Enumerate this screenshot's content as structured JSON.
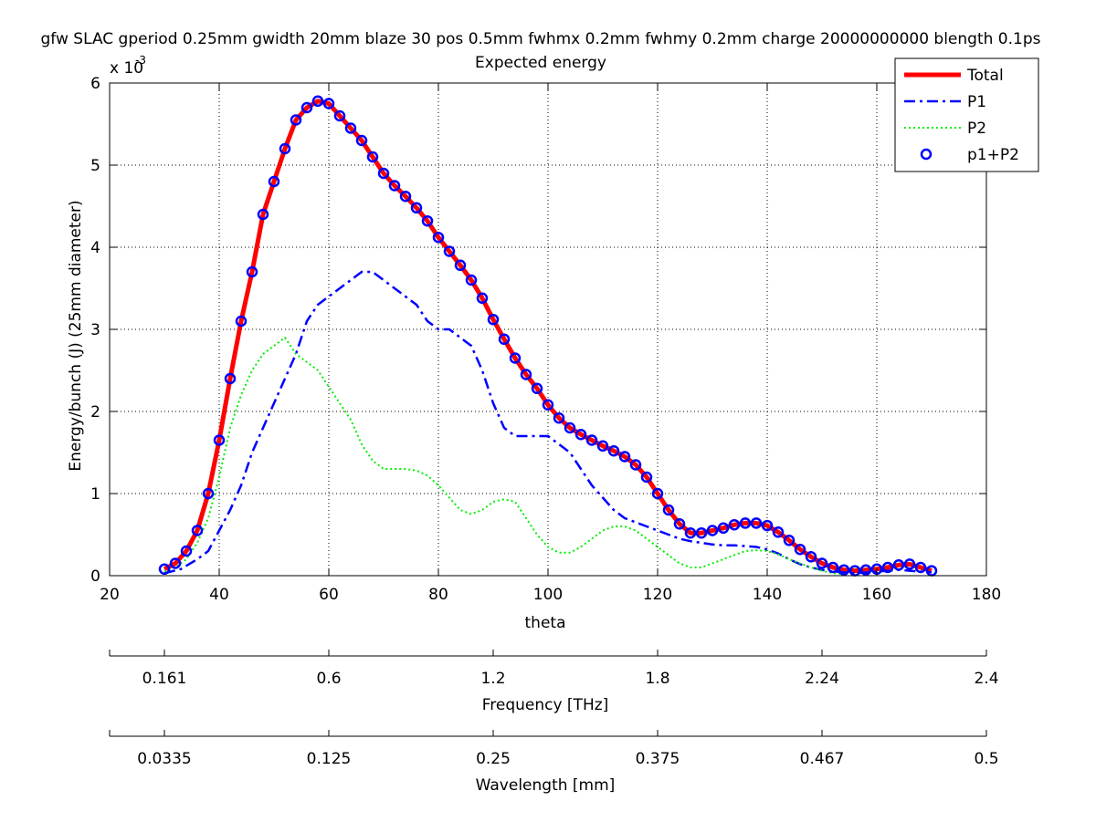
{
  "chart_data": {
    "type": "line",
    "title": "gfw SLAC gperiod 0.25mm gwidth 20mm blaze 30 pos 0.5mm fwhmx 0.2mm fwhmy 0.2mm charge 20000000000 blength 0.1ps",
    "subtitle": "Expected energy",
    "xlabel": "theta",
    "ylabel": "Energy/bunch (J) (25mm diameter)",
    "y_exponent_label": "x 10",
    "y_exponent_power": "-3",
    "xlim": [
      20,
      180
    ],
    "ylim": [
      0,
      0.006
    ],
    "x_ticks": [
      "20",
      "40",
      "60",
      "80",
      "100",
      "120",
      "140",
      "160",
      "180"
    ],
    "y_ticks": [
      "0",
      "1",
      "2",
      "3",
      "4",
      "5",
      "6"
    ],
    "grid": true,
    "legend_position": "top-right",
    "secondary_axes": [
      {
        "label": "Frequency [THz]",
        "ticks": [
          {
            "theta": 30,
            "label": "0.161"
          },
          {
            "theta": 60,
            "label": "0.6"
          },
          {
            "theta": 90,
            "label": "1.2"
          },
          {
            "theta": 120,
            "label": "1.8"
          },
          {
            "theta": 150,
            "label": "2.24"
          },
          {
            "theta": 180,
            "label": "2.4"
          }
        ]
      },
      {
        "label": "Wavelength [mm]",
        "ticks": [
          {
            "theta": 30,
            "label": "0.0335"
          },
          {
            "theta": 60,
            "label": "0.125"
          },
          {
            "theta": 90,
            "label": "0.25"
          },
          {
            "theta": 120,
            "label": "0.375"
          },
          {
            "theta": 150,
            "label": "0.467"
          },
          {
            "theta": 180,
            "label": "0.5"
          }
        ]
      }
    ],
    "series": [
      {
        "name": "Total",
        "color": "#ff0000",
        "style": "solid",
        "points": [
          [
            30,
            8e-05
          ],
          [
            32,
            0.00015
          ],
          [
            34,
            0.0003
          ],
          [
            36,
            0.00055
          ],
          [
            38,
            0.001
          ],
          [
            40,
            0.00165
          ],
          [
            42,
            0.0024
          ],
          [
            44,
            0.0031
          ],
          [
            46,
            0.0037
          ],
          [
            48,
            0.0044
          ],
          [
            50,
            0.0048
          ],
          [
            52,
            0.0052
          ],
          [
            54,
            0.00555
          ],
          [
            56,
            0.0057
          ],
          [
            58,
            0.00578
          ],
          [
            60,
            0.00575
          ],
          [
            62,
            0.0056
          ],
          [
            64,
            0.00545
          ],
          [
            66,
            0.0053
          ],
          [
            68,
            0.0051
          ],
          [
            70,
            0.0049
          ],
          [
            72,
            0.00475
          ],
          [
            74,
            0.00462
          ],
          [
            76,
            0.00448
          ],
          [
            78,
            0.00432
          ],
          [
            80,
            0.00412
          ],
          [
            82,
            0.00395
          ],
          [
            84,
            0.00378
          ],
          [
            86,
            0.0036
          ],
          [
            88,
            0.00338
          ],
          [
            90,
            0.00312
          ],
          [
            92,
            0.00288
          ],
          [
            94,
            0.00265
          ],
          [
            96,
            0.00245
          ],
          [
            98,
            0.00228
          ],
          [
            100,
            0.00208
          ],
          [
            102,
            0.00192
          ],
          [
            104,
            0.0018
          ],
          [
            106,
            0.00172
          ],
          [
            108,
            0.00165
          ],
          [
            110,
            0.00158
          ],
          [
            112,
            0.00152
          ],
          [
            114,
            0.00145
          ],
          [
            116,
            0.00135
          ],
          [
            118,
            0.0012
          ],
          [
            120,
            0.001
          ],
          [
            122,
            0.0008
          ],
          [
            124,
            0.00063
          ],
          [
            126,
            0.00052
          ],
          [
            128,
            0.00052
          ],
          [
            130,
            0.00055
          ],
          [
            132,
            0.00058
          ],
          [
            134,
            0.00062
          ],
          [
            136,
            0.00064
          ],
          [
            138,
            0.00064
          ],
          [
            140,
            0.00061
          ],
          [
            142,
            0.00053
          ],
          [
            144,
            0.00043
          ],
          [
            146,
            0.00032
          ],
          [
            148,
            0.00023
          ],
          [
            150,
            0.00015
          ],
          [
            152,
            0.0001
          ],
          [
            154,
            7e-05
          ],
          [
            156,
            6e-05
          ],
          [
            158,
            7e-05
          ],
          [
            160,
            8e-05
          ],
          [
            162,
            0.0001
          ],
          [
            164,
            0.00013
          ],
          [
            166,
            0.00014
          ],
          [
            168,
            0.0001
          ],
          [
            170,
            6e-05
          ]
        ]
      },
      {
        "name": "P1",
        "color": "#0000ff",
        "style": "dashdot",
        "points": [
          [
            30,
            3e-05
          ],
          [
            33,
            8e-05
          ],
          [
            36,
            0.0002
          ],
          [
            38,
            0.0003
          ],
          [
            40,
            0.00055
          ],
          [
            42,
            0.0008
          ],
          [
            44,
            0.0011
          ],
          [
            46,
            0.0015
          ],
          [
            48,
            0.0018
          ],
          [
            50,
            0.0021
          ],
          [
            52,
            0.0024
          ],
          [
            54,
            0.0027
          ],
          [
            56,
            0.0031
          ],
          [
            58,
            0.0033
          ],
          [
            60,
            0.0034
          ],
          [
            62,
            0.0035
          ],
          [
            64,
            0.0036
          ],
          [
            66,
            0.0037
          ],
          [
            68,
            0.0037
          ],
          [
            70,
            0.0036
          ],
          [
            72,
            0.0035
          ],
          [
            74,
            0.0034
          ],
          [
            76,
            0.0033
          ],
          [
            78,
            0.0031
          ],
          [
            80,
            0.003
          ],
          [
            82,
            0.003
          ],
          [
            84,
            0.0029
          ],
          [
            86,
            0.0028
          ],
          [
            88,
            0.0025
          ],
          [
            90,
            0.0021
          ],
          [
            92,
            0.0018
          ],
          [
            94,
            0.0017
          ],
          [
            96,
            0.0017
          ],
          [
            98,
            0.0017
          ],
          [
            100,
            0.0017
          ],
          [
            102,
            0.0016
          ],
          [
            104,
            0.0015
          ],
          [
            106,
            0.0013
          ],
          [
            108,
            0.0011
          ],
          [
            110,
            0.00095
          ],
          [
            112,
            0.0008
          ],
          [
            114,
            0.0007
          ],
          [
            116,
            0.00065
          ],
          [
            118,
            0.0006
          ],
          [
            120,
            0.00055
          ],
          [
            122,
            0.0005
          ],
          [
            124,
            0.00045
          ],
          [
            126,
            0.00042
          ],
          [
            128,
            0.0004
          ],
          [
            130,
            0.00038
          ],
          [
            132,
            0.00037
          ],
          [
            134,
            0.00037
          ],
          [
            136,
            0.00036
          ],
          [
            138,
            0.00035
          ],
          [
            140,
            0.00032
          ],
          [
            142,
            0.00027
          ],
          [
            144,
            0.0002
          ],
          [
            146,
            0.00014
          ],
          [
            148,
            0.0001
          ],
          [
            150,
            7e-05
          ],
          [
            152,
            5e-05
          ],
          [
            154,
            4e-05
          ],
          [
            156,
            3e-05
          ],
          [
            158,
            4e-05
          ],
          [
            160,
            5e-05
          ],
          [
            162,
            6e-05
          ],
          [
            164,
            7e-05
          ],
          [
            166,
            6e-05
          ],
          [
            168,
            5e-05
          ],
          [
            170,
            4e-05
          ]
        ]
      },
      {
        "name": "P2",
        "color": "#00ee00",
        "style": "dotted",
        "points": [
          [
            30,
            5e-05
          ],
          [
            32,
            0.0001
          ],
          [
            34,
            0.0002
          ],
          [
            36,
            0.0004
          ],
          [
            38,
            0.0007
          ],
          [
            40,
            0.0012
          ],
          [
            42,
            0.0018
          ],
          [
            44,
            0.0022
          ],
          [
            46,
            0.0025
          ],
          [
            48,
            0.0027
          ],
          [
            50,
            0.0028
          ],
          [
            52,
            0.0029
          ],
          [
            54,
            0.0027
          ],
          [
            56,
            0.0026
          ],
          [
            58,
            0.0025
          ],
          [
            60,
            0.0023
          ],
          [
            62,
            0.0021
          ],
          [
            64,
            0.0019
          ],
          [
            66,
            0.0016
          ],
          [
            68,
            0.0014
          ],
          [
            70,
            0.0013
          ],
          [
            72,
            0.0013
          ],
          [
            74,
            0.0013
          ],
          [
            76,
            0.00128
          ],
          [
            78,
            0.00122
          ],
          [
            80,
            0.0011
          ],
          [
            82,
            0.00095
          ],
          [
            84,
            0.0008
          ],
          [
            86,
            0.00075
          ],
          [
            88,
            0.0008
          ],
          [
            90,
            0.0009
          ],
          [
            92,
            0.00093
          ],
          [
            94,
            0.0009
          ],
          [
            96,
            0.0007
          ],
          [
            98,
            0.0005
          ],
          [
            100,
            0.00035
          ],
          [
            102,
            0.00028
          ],
          [
            104,
            0.00028
          ],
          [
            106,
            0.00035
          ],
          [
            108,
            0.00045
          ],
          [
            110,
            0.00055
          ],
          [
            112,
            0.0006
          ],
          [
            114,
            0.0006
          ],
          [
            116,
            0.00055
          ],
          [
            118,
            0.00045
          ],
          [
            120,
            0.00035
          ],
          [
            122,
            0.00025
          ],
          [
            124,
            0.00015
          ],
          [
            126,
            0.0001
          ],
          [
            128,
            0.0001
          ],
          [
            130,
            0.00015
          ],
          [
            132,
            0.0002
          ],
          [
            134,
            0.00025
          ],
          [
            136,
            0.0003
          ],
          [
            138,
            0.00031
          ],
          [
            140,
            0.0003
          ],
          [
            142,
            0.00026
          ],
          [
            144,
            0.0002
          ],
          [
            146,
            0.00015
          ],
          [
            148,
            0.0001
          ],
          [
            150,
            6e-05
          ],
          [
            152,
            3e-05
          ],
          [
            154,
            2e-05
          ]
        ]
      },
      {
        "name": "p1+P2",
        "color": "#0000ff",
        "style": "markers",
        "points": [
          [
            30,
            8e-05
          ],
          [
            32,
            0.00015
          ],
          [
            34,
            0.0003
          ],
          [
            36,
            0.00055
          ],
          [
            38,
            0.001
          ],
          [
            40,
            0.00165
          ],
          [
            42,
            0.0024
          ],
          [
            44,
            0.0031
          ],
          [
            46,
            0.0037
          ],
          [
            48,
            0.0044
          ],
          [
            50,
            0.0048
          ],
          [
            52,
            0.0052
          ],
          [
            54,
            0.00555
          ],
          [
            56,
            0.0057
          ],
          [
            58,
            0.00578
          ],
          [
            60,
            0.00575
          ],
          [
            62,
            0.0056
          ],
          [
            64,
            0.00545
          ],
          [
            66,
            0.0053
          ],
          [
            68,
            0.0051
          ],
          [
            70,
            0.0049
          ],
          [
            72,
            0.00475
          ],
          [
            74,
            0.00462
          ],
          [
            76,
            0.00448
          ],
          [
            78,
            0.00432
          ],
          [
            80,
            0.00412
          ],
          [
            82,
            0.00395
          ],
          [
            84,
            0.00378
          ],
          [
            86,
            0.0036
          ],
          [
            88,
            0.00338
          ],
          [
            90,
            0.00312
          ],
          [
            92,
            0.00288
          ],
          [
            94,
            0.00265
          ],
          [
            96,
            0.00245
          ],
          [
            98,
            0.00228
          ],
          [
            100,
            0.00208
          ],
          [
            102,
            0.00192
          ],
          [
            104,
            0.0018
          ],
          [
            106,
            0.00172
          ],
          [
            108,
            0.00165
          ],
          [
            110,
            0.00158
          ],
          [
            112,
            0.00152
          ],
          [
            114,
            0.00145
          ],
          [
            116,
            0.00135
          ],
          [
            118,
            0.0012
          ],
          [
            120,
            0.001
          ],
          [
            122,
            0.0008
          ],
          [
            124,
            0.00063
          ],
          [
            126,
            0.00052
          ],
          [
            128,
            0.00052
          ],
          [
            130,
            0.00055
          ],
          [
            132,
            0.00058
          ],
          [
            134,
            0.00062
          ],
          [
            136,
            0.00064
          ],
          [
            138,
            0.00064
          ],
          [
            140,
            0.00061
          ],
          [
            142,
            0.00053
          ],
          [
            144,
            0.00043
          ],
          [
            146,
            0.00032
          ],
          [
            148,
            0.00023
          ],
          [
            150,
            0.00015
          ],
          [
            152,
            0.0001
          ],
          [
            154,
            7e-05
          ],
          [
            156,
            6e-05
          ],
          [
            158,
            7e-05
          ],
          [
            160,
            8e-05
          ],
          [
            162,
            0.0001
          ],
          [
            164,
            0.00013
          ],
          [
            166,
            0.00014
          ],
          [
            168,
            0.0001
          ],
          [
            170,
            6e-05
          ]
        ]
      }
    ]
  }
}
